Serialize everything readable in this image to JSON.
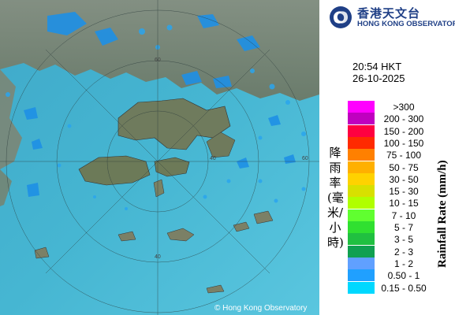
{
  "header": {
    "org_chinese": "香港天文台",
    "org_english": "HONG KONG OBSERVATORY",
    "logo_icon": "hko-swirl-logo-icon"
  },
  "timestamp": {
    "time": "20:54 HKT",
    "date": "26-10-2025"
  },
  "legend": {
    "title_english": "Rainfall Rate (mm/h)",
    "title_chinese": "降雨率(毫米/小時)",
    "items": [
      {
        "label": ">300",
        "color": "#ff00ff"
      },
      {
        "label": "200 - 300",
        "color": "#c000c0"
      },
      {
        "label": "150 - 200",
        "color": "#ff0040"
      },
      {
        "label": "100 - 150",
        "color": "#ff2a00"
      },
      {
        "label": "75 - 100",
        "color": "#ff8000"
      },
      {
        "label": "50 - 75",
        "color": "#ffb000"
      },
      {
        "label": "30 - 50",
        "color": "#ffd200"
      },
      {
        "label": "15 - 30",
        "color": "#d8e000"
      },
      {
        "label": "10 - 15",
        "color": "#b0ff00"
      },
      {
        "label": "7 - 10",
        "color": "#60ff30"
      },
      {
        "label": "5 - 7",
        "color": "#30e030"
      },
      {
        "label": "3 - 5",
        "color": "#20c040"
      },
      {
        "label": "2 - 3",
        "color": "#10a050"
      },
      {
        "label": "1 - 2",
        "color": "#60a0ff"
      },
      {
        "label": "0.50 - 1",
        "color": "#20a0ff"
      },
      {
        "label": "0.15 - 0.50",
        "color": "#00d8ff"
      }
    ]
  },
  "map": {
    "ring_labels": [
      "40",
      "60",
      "40",
      "60"
    ],
    "copyright": "© Hong Kong Observatory"
  }
}
